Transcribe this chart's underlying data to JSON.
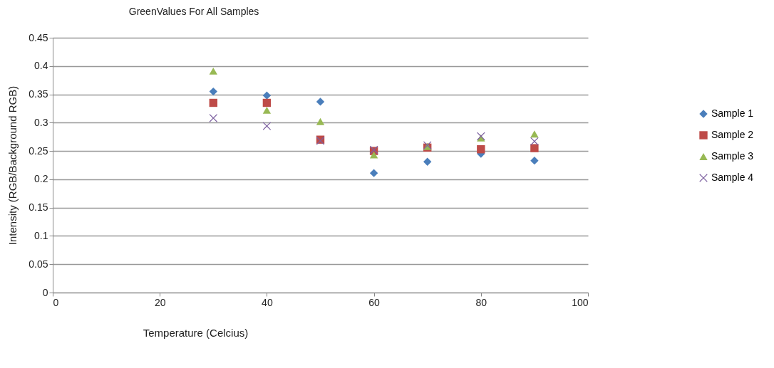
{
  "chart_data": {
    "type": "scatter",
    "title": "GreenValues For All Samples",
    "xlabel": "Temperature (Celcius)",
    "ylabel": "Intensity (RGB/Background RGB)",
    "x": [
      30,
      40,
      50,
      60,
      70,
      80,
      90
    ],
    "series": [
      {
        "name": "Sample 1",
        "color": "#4a7ebb",
        "marker": "diamond",
        "values": [
          0.355,
          0.348,
          0.337,
          0.211,
          0.231,
          0.245,
          0.233
        ]
      },
      {
        "name": "Sample 2",
        "color": "#be4b48",
        "marker": "square",
        "values": [
          0.335,
          0.335,
          0.27,
          0.25,
          0.256,
          0.253,
          0.255
        ]
      },
      {
        "name": "Sample 3",
        "color": "#98b954",
        "marker": "triangle",
        "values": [
          0.391,
          0.322,
          0.302,
          0.243,
          0.258,
          0.273,
          0.28
        ]
      },
      {
        "name": "Sample 4",
        "color": "#7d60a0",
        "marker": "cross",
        "values": [
          0.308,
          0.294,
          0.268,
          0.252,
          0.26,
          0.276,
          0.267
        ]
      }
    ],
    "xlim": [
      0,
      100
    ],
    "xticks": [
      0,
      20,
      40,
      60,
      80,
      100
    ],
    "ylim": [
      0,
      0.45
    ],
    "yticks": [
      0,
      0.05,
      0.1,
      0.15,
      0.2,
      0.25,
      0.3,
      0.35,
      0.4,
      0.45
    ],
    "grid": "y",
    "legend": "right"
  }
}
